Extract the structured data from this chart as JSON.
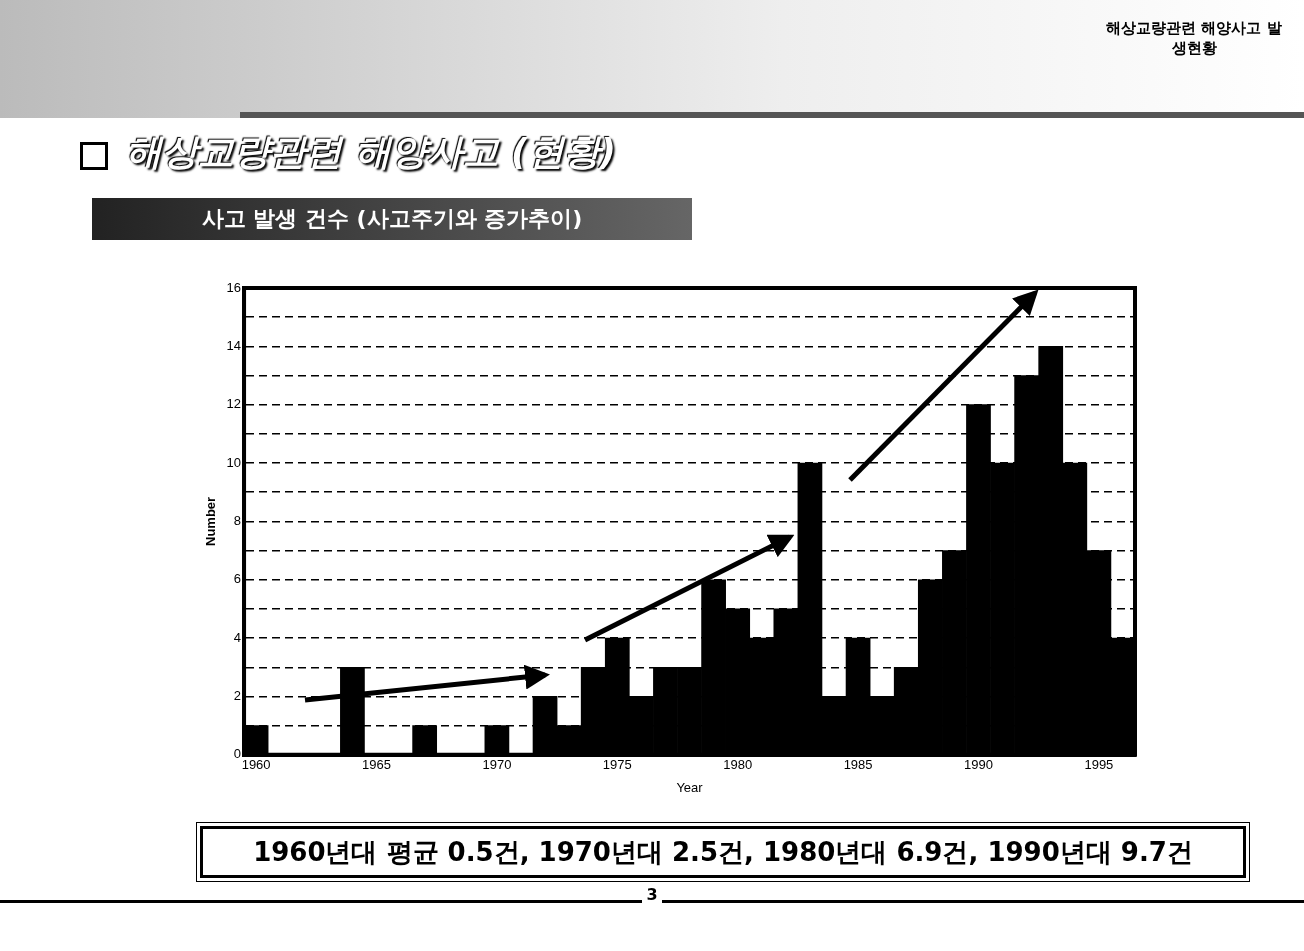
{
  "chart_data": {
    "type": "bar",
    "title": "해상교량관련 해양사고 (현황)",
    "subtitle": "사고 발생 건수 (사고주기와 증가추이)",
    "xlabel": "Year",
    "ylabel": "Number",
    "categories": [
      "1960",
      null,
      null,
      null,
      null,
      "1965",
      null,
      null,
      null,
      null,
      "1970",
      null,
      null,
      null,
      null,
      "1975",
      null,
      null,
      null,
      null,
      "1980",
      null,
      null,
      null,
      null,
      "1985",
      null,
      null,
      null,
      null,
      "1990",
      null,
      null,
      null,
      null,
      "1995",
      null
    ],
    "values": [
      1,
      0,
      0,
      0,
      3,
      0,
      0,
      1,
      0,
      0,
      1,
      0,
      2,
      1,
      3,
      4,
      2,
      3,
      3,
      6,
      5,
      4,
      5,
      10,
      2,
      4,
      2,
      3,
      6,
      7,
      12,
      10,
      13,
      14,
      10,
      7,
      4
    ],
    "color": "#000000",
    "ylim": [
      0,
      16
    ],
    "yticks": [
      0,
      {
        "value": 1,
        "label": null
      },
      2,
      {
        "value": 3,
        "label": null
      },
      4,
      {
        "value": 5,
        "label": null
      },
      6,
      {
        "value": 7,
        "label": null
      },
      8,
      {
        "value": 9,
        "label": null
      },
      10,
      {
        "value": 11,
        "label": null
      },
      12,
      {
        "value": 13,
        "label": null
      },
      14,
      {
        "value": 15,
        "label": null
      },
      16
    ],
    "grid": "y",
    "legend": false,
    "annotations": [
      "해상교량관련 해양사고 발생현황",
      "1960년대 평균 0.5건, 1970년대 2.5건, 1980년대 6.9건, 1990년대 9.7건",
      "3"
    ]
  }
}
